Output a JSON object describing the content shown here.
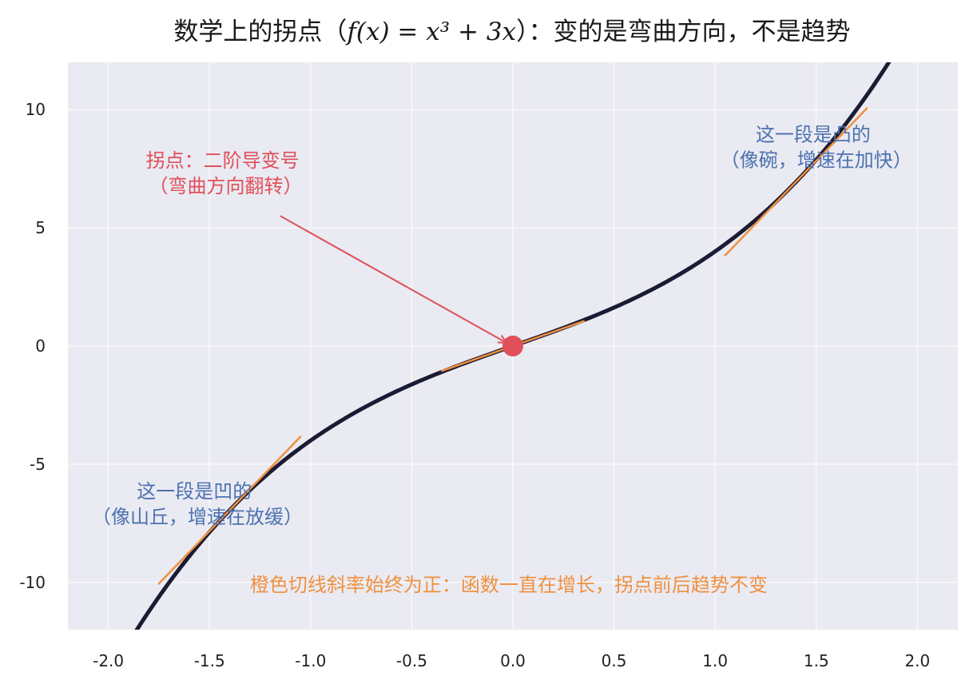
{
  "chart_data": {
    "type": "line",
    "title": {
      "prefix": "数学上的拐点（",
      "math": "f(x) = x³ + 3x",
      "suffix": "）：变的是弯曲方向，不是趋势"
    },
    "xlabel": "",
    "ylabel": "",
    "xlim": [
      -2.2,
      2.2
    ],
    "ylim": [
      -12,
      12
    ],
    "xticks": [
      -2.0,
      -1.5,
      -1.0,
      -0.5,
      0.0,
      0.5,
      1.0,
      1.5,
      2.0
    ],
    "xtick_labels": [
      "-2.0",
      "-1.5",
      "-1.0",
      "-0.5",
      "0.0",
      "0.5",
      "1.0",
      "1.5",
      "2.0"
    ],
    "yticks": [
      -10,
      -5,
      0,
      5,
      10
    ],
    "ytick_labels": [
      "-10",
      "-5",
      "0",
      "5",
      "10"
    ],
    "grid": true,
    "curve": {
      "function": "x^3 + 3x",
      "color": "#1c1b33",
      "x_range": [
        -1.9,
        1.9
      ],
      "points": [
        {
          "x": -1.9,
          "y": -12.56
        },
        {
          "x": -1.75,
          "y": -10.61
        },
        {
          "x": -1.5,
          "y": -7.88
        },
        {
          "x": -1.25,
          "y": -5.7
        },
        {
          "x": -1.0,
          "y": -4.0
        },
        {
          "x": -0.75,
          "y": -2.67
        },
        {
          "x": -0.5,
          "y": -1.63
        },
        {
          "x": -0.25,
          "y": -0.77
        },
        {
          "x": 0.0,
          "y": 0.0
        },
        {
          "x": 0.25,
          "y": 0.77
        },
        {
          "x": 0.5,
          "y": 1.63
        },
        {
          "x": 0.75,
          "y": 2.67
        },
        {
          "x": 1.0,
          "y": 4.0
        },
        {
          "x": 1.25,
          "y": 5.7
        },
        {
          "x": 1.5,
          "y": 7.88
        },
        {
          "x": 1.75,
          "y": 10.61
        },
        {
          "x": 1.9,
          "y": 12.56
        }
      ]
    },
    "tangents": [
      {
        "x0": -1.4,
        "y0": -6.944,
        "slope": 8.88,
        "half_width": 0.35
      },
      {
        "x0": 0.0,
        "y0": 0.0,
        "slope": 3.0,
        "half_width": 0.35
      },
      {
        "x0": 1.4,
        "y0": 6.944,
        "slope": 8.88,
        "half_width": 0.35
      }
    ],
    "tangent_color": "#f0903f",
    "inflection_point": {
      "x": 0.0,
      "y": 0.0,
      "color": "#e0505a"
    },
    "annotations": {
      "inflection": {
        "lines": [
          "拐点：二阶导变号",
          "（弯曲方向翻转）"
        ],
        "color": "#e0505a",
        "text_at": {
          "x": -1.42,
          "y": 7.3
        },
        "arrow_from": {
          "x": -1.15,
          "y": 5.5
        }
      },
      "concave": {
        "lines": [
          "这一段是凹的",
          "（像山丘，增速在放缓）"
        ],
        "color": "#4c72b0",
        "text_at": {
          "x": -1.56,
          "y": -6.7
        }
      },
      "convex": {
        "lines": [
          "这一段是凸的",
          "（像碗，增速在加快）"
        ],
        "color": "#4c72b0",
        "text_at": {
          "x": 1.5,
          "y": 8.4
        }
      },
      "note": {
        "text": "橙色切线斜率始终为正：函数一直在增长，拐点前后趋势不变",
        "color": "#f0903f",
        "text_at": {
          "x": -0.02,
          "y": -10.1
        }
      }
    }
  }
}
